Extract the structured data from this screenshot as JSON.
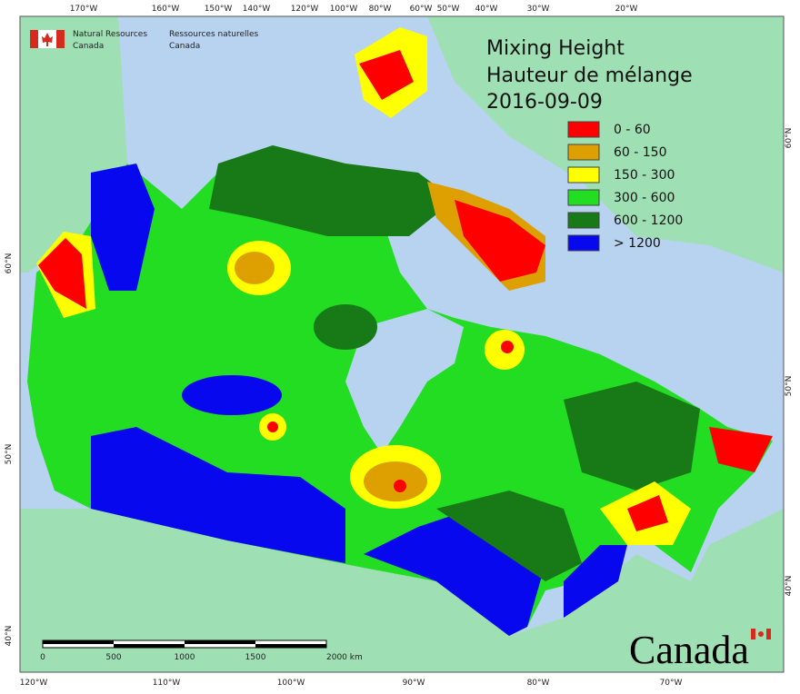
{
  "header": {
    "agency_en": [
      "Natural Resources",
      "Canada"
    ],
    "agency_fr": [
      "Ressources naturelles",
      "Canada"
    ]
  },
  "title": {
    "line1": "Mixing Height",
    "line2": "Hauteur de mélange",
    "date": "2016-09-09"
  },
  "legend": {
    "items": [
      {
        "label": "0 - 60",
        "color": "#ff0000"
      },
      {
        "label": "60 - 150",
        "color": "#dda000"
      },
      {
        "label": "150 - 300",
        "color": "#ffff00"
      },
      {
        "label": "300 - 600",
        "color": "#22dd22"
      },
      {
        "label": "600 - 1200",
        "color": "#177a17"
      },
      {
        "label": "> 1200",
        "color": "#0808ee"
      }
    ]
  },
  "graticule": {
    "top": [
      "170°W",
      "160°W",
      "150°W",
      "140°W",
      "120°W",
      "100°W",
      "80°W",
      "60°W",
      "50°W",
      "40°W",
      "30°W",
      "20°W"
    ],
    "bottom": [
      "120°W",
      "110°W",
      "100°W",
      "90°W",
      "80°W",
      "70°W"
    ],
    "left": [
      "60°N",
      "50°N",
      "40°N"
    ],
    "right": [
      "60°N",
      "50°N",
      "40°N"
    ]
  },
  "scale_bar": {
    "labels": [
      "0",
      "500",
      "1000",
      "1500",
      "2000 km"
    ]
  },
  "wordmark": "Canada"
}
